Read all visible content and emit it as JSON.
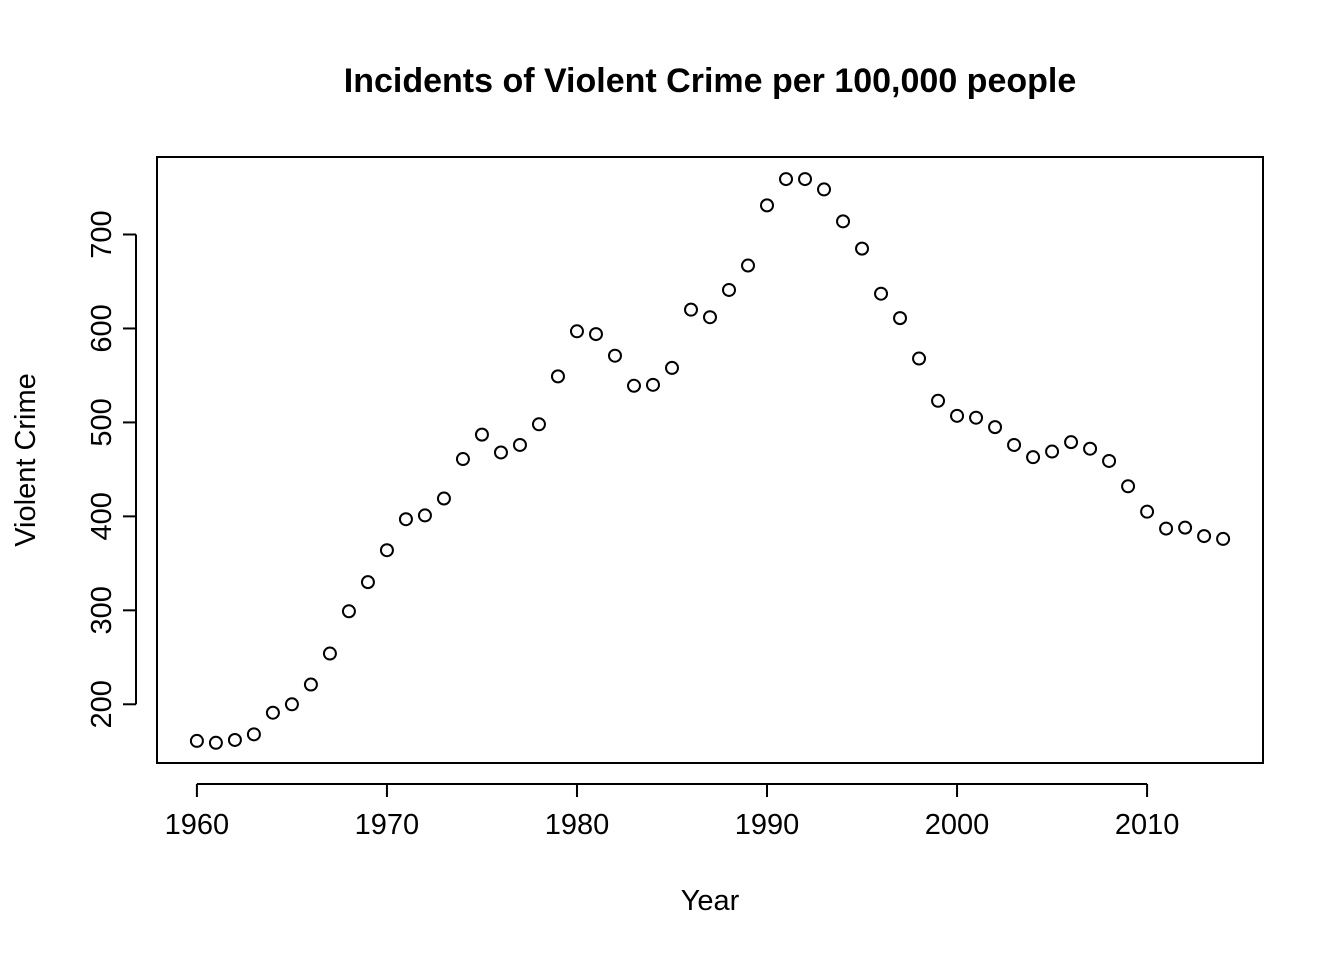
{
  "chart_data": {
    "type": "scatter",
    "title": "Incidents of Violent Crime per 100,000 people",
    "xlabel": "Year",
    "ylabel": "Violent Crime",
    "xlim": [
      1957.9,
      2016.1
    ],
    "ylim": [
      137.5,
      782.5
    ],
    "x_ticks": [
      1960,
      1970,
      1980,
      1990,
      2000,
      2010
    ],
    "y_ticks": [
      200,
      300,
      400,
      500,
      600,
      700
    ],
    "grid": false,
    "legend": "none",
    "marker": "open-circle",
    "colors": {
      "points": "#000000",
      "axes": "#000000",
      "background": "#ffffff"
    },
    "series": [
      {
        "x": [
          1960,
          1961,
          1962,
          1963,
          1964,
          1965,
          1966,
          1967,
          1968,
          1969,
          1970,
          1971,
          1972,
          1973,
          1974,
          1975,
          1976,
          1977,
          1978,
          1979,
          1980,
          1981,
          1982,
          1983,
          1984,
          1985,
          1986,
          1987,
          1988,
          1989,
          1990,
          1991,
          1992,
          1993,
          1994,
          1995,
          1996,
          1997,
          1998,
          1999,
          2000,
          2001,
          2002,
          2003,
          2004,
          2005,
          2006,
          2007,
          2008,
          2009,
          2010,
          2011,
          2012,
          2013,
          2014
        ],
        "y": [
          161,
          159,
          162,
          168,
          191,
          200,
          221,
          254,
          299,
          330,
          364,
          397,
          401,
          419,
          461,
          487,
          468,
          476,
          498,
          549,
          597,
          594,
          571,
          539,
          540,
          558,
          620,
          612,
          641,
          667,
          731,
          759,
          759,
          748,
          714,
          685,
          637,
          611,
          568,
          523,
          507,
          505,
          495,
          476,
          463,
          469,
          479,
          472,
          459,
          432,
          405,
          387,
          388,
          379,
          376
        ]
      }
    ]
  }
}
